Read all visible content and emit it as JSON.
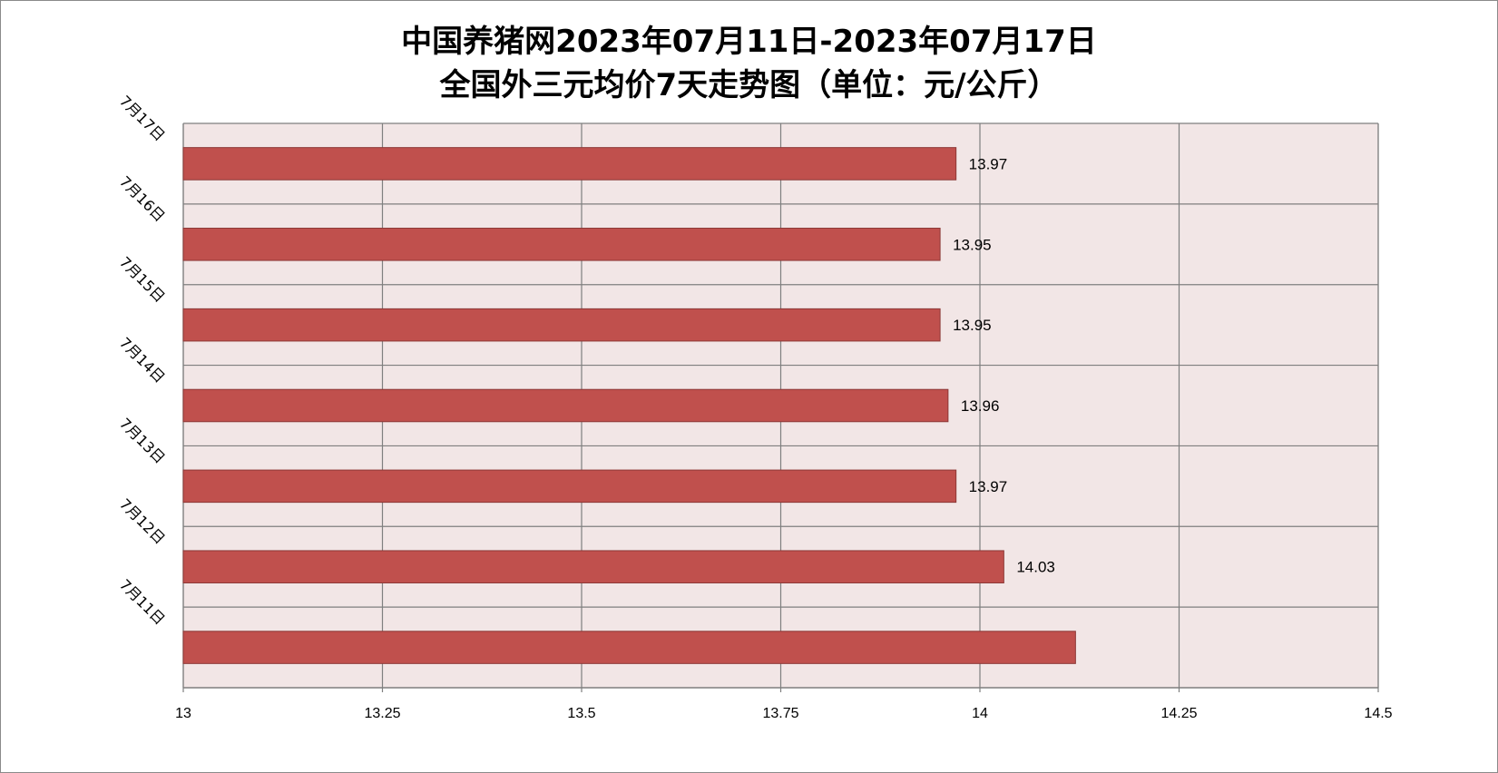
{
  "chart_data": {
    "type": "bar",
    "orientation": "horizontal",
    "title_line1": "中国养猪网2023年07月11日-2023年07月17日",
    "title_line2": "全国外三元均价7天走势图（单位：元/公斤）",
    "categories": [
      "7月17日",
      "7月16日",
      "7月15日",
      "7月14日",
      "7月13日",
      "7月12日",
      "7月11日"
    ],
    "values": [
      13.97,
      13.95,
      13.95,
      13.96,
      13.97,
      14.03,
      14.12
    ],
    "data_labels": [
      "13.97",
      "13.95",
      "13.95",
      "13.96",
      "13.97",
      "14.03",
      ""
    ],
    "xlim": [
      13,
      14.5
    ],
    "x_ticks": [
      13,
      13.25,
      13.5,
      13.75,
      14,
      14.25,
      14.5
    ],
    "x_tick_labels": [
      "13",
      "13.25",
      "13.5",
      "13.75",
      "14",
      "14.25",
      "14.5"
    ],
    "grid": true,
    "bar_color": "#c0504d",
    "bar_edge_color": "#8c3836",
    "plot_background": "#f2e6e6",
    "grid_color": "#7f7f7f"
  }
}
